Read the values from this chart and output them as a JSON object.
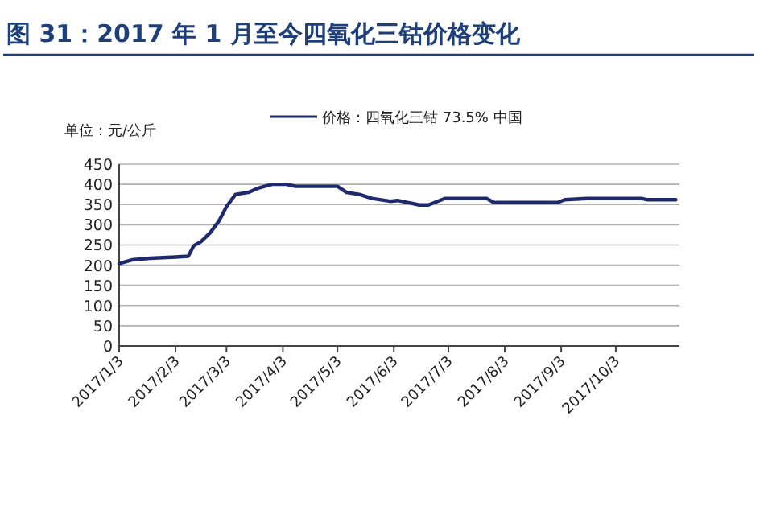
{
  "chart_data": {
    "type": "line",
    "title": "图 31：2017 年 1 月至今四氧化三钴价格变化",
    "ylabel": "单位：元/公斤",
    "legend": "top",
    "grid": "y",
    "line_style": "solid",
    "marker": "none",
    "x": [
      "2017-01-03",
      "2017-01-10",
      "2017-01-20",
      "2017-02-03",
      "2017-02-10",
      "2017-02-13",
      "2017-02-17",
      "2017-02-22",
      "2017-02-27",
      "2017-03-03",
      "2017-03-08",
      "2017-03-15",
      "2017-03-20",
      "2017-03-28",
      "2017-04-05",
      "2017-04-10",
      "2017-05-03",
      "2017-05-08",
      "2017-05-15",
      "2017-05-22",
      "2017-06-01",
      "2017-06-05",
      "2017-06-17",
      "2017-06-22",
      "2017-07-01",
      "2017-07-24",
      "2017-07-28",
      "2017-09-01",
      "2017-09-05",
      "2017-09-17",
      "2017-10-17",
      "2017-10-20",
      "2017-11-05"
    ],
    "series": [
      {
        "name": "价格：四氧化三钴 73.5% 中国",
        "color": "#1f2a6e",
        "values": [
          204,
          213,
          217,
          220,
          222,
          248,
          258,
          280,
          310,
          345,
          375,
          380,
          390,
          400,
          400,
          395,
          395,
          380,
          375,
          365,
          358,
          360,
          349,
          349,
          365,
          365,
          355,
          355,
          362,
          365,
          365,
          362,
          362
        ]
      }
    ],
    "xlim": [
      "2017-01-03",
      "2017-11-07"
    ],
    "xticks": [
      {
        "value": "2017-01-03",
        "label": "2017/1/3"
      },
      {
        "value": "2017-02-03",
        "label": "2017/2/3"
      },
      {
        "value": "2017-03-03",
        "label": "2017/3/3"
      },
      {
        "value": "2017-04-03",
        "label": "2017/4/3"
      },
      {
        "value": "2017-05-03",
        "label": "2017/5/3"
      },
      {
        "value": "2017-06-03",
        "label": "2017/6/3"
      },
      {
        "value": "2017-07-03",
        "label": "2017/7/3"
      },
      {
        "value": "2017-08-03",
        "label": "2017/8/3"
      },
      {
        "value": "2017-09-03",
        "label": "2017/9/3"
      },
      {
        "value": "2017-10-03",
        "label": "2017/10/3"
      }
    ],
    "ylim": [
      0,
      450
    ],
    "yticks": [
      0,
      50,
      100,
      150,
      200,
      250,
      300,
      350,
      400,
      450
    ]
  }
}
